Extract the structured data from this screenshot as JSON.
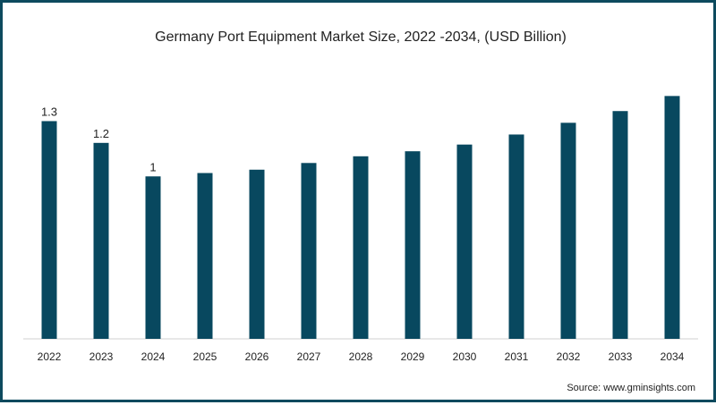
{
  "chart_data": {
    "type": "bar",
    "title": "Germany Port Equipment Market Size, 2022 -2034, (USD Billion)",
    "categories": [
      "2022",
      "2023",
      "2024",
      "2025",
      "2026",
      "2027",
      "2028",
      "2029",
      "2030",
      "2031",
      "2032",
      "2033",
      "2034"
    ],
    "values": [
      1.3,
      1.17,
      0.97,
      0.99,
      1.01,
      1.05,
      1.09,
      1.12,
      1.16,
      1.22,
      1.29,
      1.36,
      1.45
    ],
    "data_labels": [
      "1.3",
      "1.2",
      "1",
      "",
      "",
      "",
      "",
      "",
      "",
      "",
      "",
      "",
      ""
    ],
    "xlabel": "",
    "ylabel": "",
    "ylim": [
      0,
      1.5
    ],
    "grid": false,
    "legend": "none",
    "bar_color": "#08485f"
  },
  "source": "Source: www.gminsights.com"
}
